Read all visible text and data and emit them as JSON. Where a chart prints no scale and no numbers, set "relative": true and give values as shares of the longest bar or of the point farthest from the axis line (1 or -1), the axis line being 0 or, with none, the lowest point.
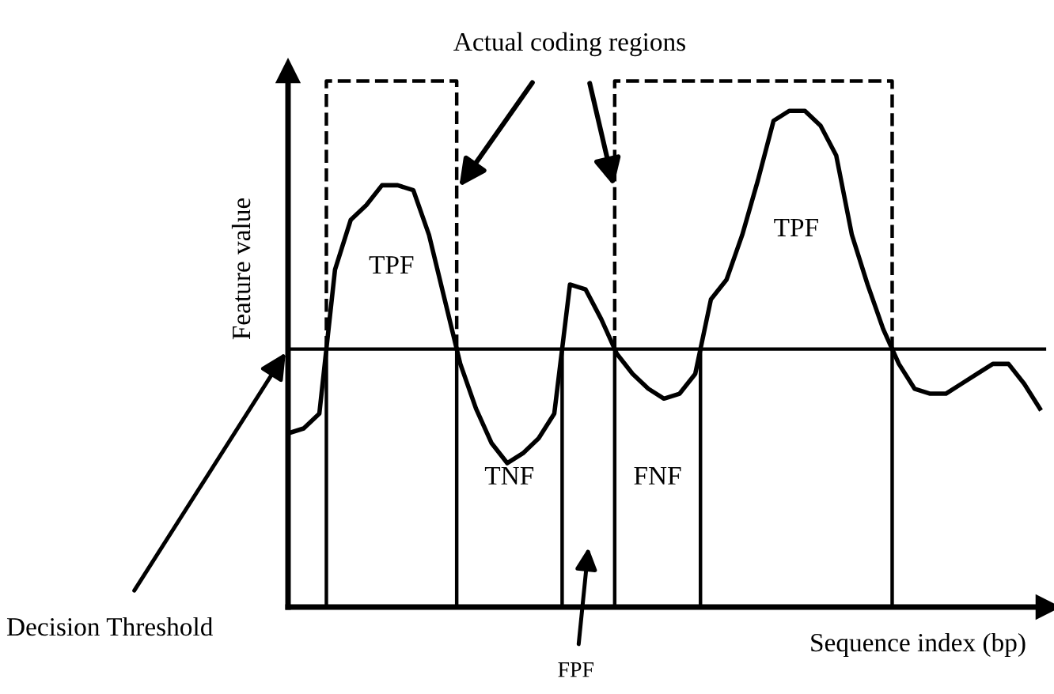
{
  "chart_data": {
    "type": "line",
    "relative": true,
    "xlabel": "Sequence index (bp)",
    "ylabel": "Feature value",
    "categories": [
      null,
      null,
      null,
      null,
      null,
      null,
      null,
      null,
      null,
      null,
      null,
      null,
      null,
      null,
      null,
      null,
      null,
      null,
      null,
      null,
      null,
      null,
      null,
      null,
      null,
      null,
      null,
      null,
      null,
      null,
      null,
      null,
      null,
      null,
      null,
      null,
      null,
      null,
      null,
      null,
      null,
      null,
      null,
      null,
      null,
      null,
      null,
      null,
      null
    ],
    "series": [
      {
        "color": "#000000",
        "values": [
          0.35,
          0.36,
          0.39,
          0.68,
          0.78,
          0.81,
          0.85,
          0.85,
          0.84,
          0.75,
          0.62,
          0.49,
          0.4,
          0.33,
          0.29,
          0.31,
          0.34,
          0.39,
          0.65,
          0.64,
          0.58,
          0.51,
          0.47,
          0.44,
          0.42,
          0.43,
          0.47,
          0.62,
          0.66,
          0.75,
          0.86,
          0.98,
          1.0,
          1.0,
          0.97,
          0.91,
          0.75,
          0.65,
          0.56,
          0.49,
          0.44,
          0.43,
          0.43,
          0.45,
          0.47,
          0.49,
          0.49,
          0.45,
          0.4
        ]
      }
    ],
    "ref_lines": [
      {
        "axis": "y",
        "value": 0.52,
        "label": "Decision Threshold"
      }
    ],
    "annotations": [
      "Actual coding regions",
      "TPF",
      "TNF",
      "FPF",
      "FNF",
      "TPF"
    ],
    "marker": "none",
    "line_style": "solid",
    "grid": false,
    "legend": false
  }
}
